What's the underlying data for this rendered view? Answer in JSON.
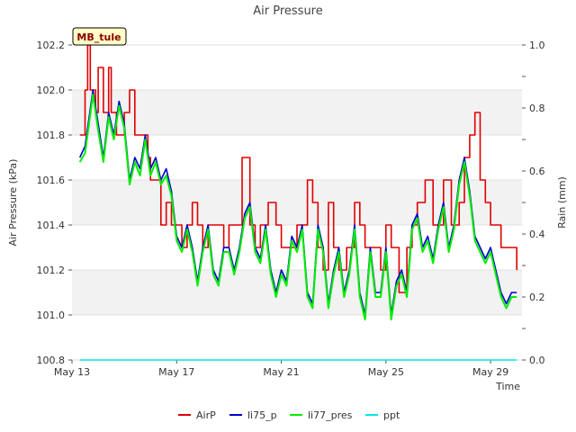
{
  "chart_data": {
    "type": "line",
    "title": "Air Pressure",
    "badge": "MB_tule",
    "xlabel": "Time",
    "ylabel": "Air Pressure (kPa)",
    "y2label": "Rain (mm)",
    "xlim": [
      0,
      17.2
    ],
    "ylim": [
      100.8,
      102.2
    ],
    "y2lim": [
      0.0,
      1.0
    ],
    "x_ticks": [
      0,
      4,
      8,
      12,
      16
    ],
    "x_tick_labels": [
      "May 13",
      "May 17",
      "May 21",
      "May 25",
      "May 29"
    ],
    "y_ticks": [
      "100.8",
      "101.0",
      "101.2",
      "101.4",
      "101.6",
      "101.8",
      "102.0",
      "102.2"
    ],
    "y2_ticks": [
      "0.0",
      "0.2",
      "0.4",
      "0.6",
      "0.8",
      "1.0"
    ],
    "grid": "horizontal bands",
    "legend_position": "bottom",
    "series": [
      {
        "name": "AirP",
        "color": "#e00000",
        "x": [
          0.3,
          0.5,
          0.6,
          0.7,
          0.9,
          1.0,
          1.2,
          1.4,
          1.5,
          1.7,
          1.9,
          2.0,
          2.2,
          2.4,
          2.6,
          2.9,
          3.0,
          3.2,
          3.4,
          3.6,
          3.8,
          4.0,
          4.2,
          4.4,
          4.6,
          4.8,
          5.0,
          5.2,
          5.5,
          5.8,
          6.0,
          6.2,
          6.5,
          6.8,
          7.0,
          7.2,
          7.5,
          7.8,
          8.0,
          8.2,
          8.4,
          8.6,
          8.8,
          9.0,
          9.2,
          9.4,
          9.6,
          9.8,
          10.0,
          10.2,
          10.5,
          10.8,
          11.0,
          11.2,
          11.5,
          11.8,
          12.0,
          12.2,
          12.5,
          12.8,
          13.0,
          13.2,
          13.5,
          13.8,
          14.0,
          14.2,
          14.5,
          14.8,
          15.0,
          15.2,
          15.4,
          15.6,
          15.8,
          16.0,
          16.2,
          16.4,
          16.6,
          16.8,
          17.0
        ],
        "values": [
          101.8,
          102.0,
          102.2,
          102.0,
          101.9,
          102.1,
          101.9,
          102.1,
          101.9,
          101.8,
          101.8,
          101.9,
          102.0,
          101.8,
          101.8,
          101.7,
          101.6,
          101.6,
          101.4,
          101.5,
          101.4,
          101.4,
          101.3,
          101.4,
          101.5,
          101.4,
          101.3,
          101.4,
          101.4,
          101.3,
          101.4,
          101.4,
          101.7,
          101.4,
          101.3,
          101.4,
          101.5,
          101.4,
          101.3,
          101.3,
          101.3,
          101.4,
          101.4,
          101.6,
          101.5,
          101.3,
          101.2,
          101.5,
          101.3,
          101.2,
          101.3,
          101.5,
          101.4,
          101.3,
          101.3,
          101.2,
          101.4,
          101.3,
          101.1,
          101.3,
          101.4,
          101.5,
          101.6,
          101.4,
          101.4,
          101.6,
          101.4,
          101.5,
          101.7,
          101.8,
          101.9,
          101.6,
          101.5,
          101.4,
          101.4,
          101.3,
          101.3,
          101.3,
          101.2
        ]
      },
      {
        "name": "li75_p",
        "color": "#0000cc",
        "x": [
          0.3,
          0.5,
          0.8,
          1.0,
          1.2,
          1.4,
          1.6,
          1.8,
          2.0,
          2.2,
          2.4,
          2.6,
          2.8,
          3.0,
          3.2,
          3.4,
          3.6,
          3.8,
          4.0,
          4.2,
          4.4,
          4.6,
          4.8,
          5.0,
          5.2,
          5.4,
          5.6,
          5.8,
          6.0,
          6.2,
          6.4,
          6.6,
          6.8,
          7.0,
          7.2,
          7.4,
          7.6,
          7.8,
          8.0,
          8.2,
          8.4,
          8.6,
          8.8,
          9.0,
          9.2,
          9.4,
          9.6,
          9.8,
          10.0,
          10.2,
          10.4,
          10.6,
          10.8,
          11.0,
          11.2,
          11.4,
          11.6,
          11.8,
          12.0,
          12.2,
          12.4,
          12.6,
          12.8,
          13.0,
          13.2,
          13.4,
          13.6,
          13.8,
          14.0,
          14.2,
          14.4,
          14.6,
          14.8,
          15.0,
          15.2,
          15.4,
          15.6,
          15.8,
          16.0,
          16.2,
          16.4,
          16.6,
          16.8,
          17.0
        ],
        "values": [
          101.7,
          101.75,
          102.0,
          101.85,
          101.7,
          101.9,
          101.8,
          101.95,
          101.85,
          101.6,
          101.7,
          101.65,
          101.8,
          101.65,
          101.7,
          101.6,
          101.65,
          101.55,
          101.35,
          101.3,
          101.4,
          101.3,
          101.15,
          101.3,
          101.4,
          101.2,
          101.15,
          101.3,
          101.3,
          101.2,
          101.3,
          101.45,
          101.5,
          101.3,
          101.25,
          101.4,
          101.2,
          101.1,
          101.2,
          101.15,
          101.35,
          101.3,
          101.4,
          101.1,
          101.05,
          101.4,
          101.3,
          101.05,
          101.2,
          101.3,
          101.1,
          101.2,
          101.4,
          101.1,
          101.0,
          101.3,
          101.1,
          101.1,
          101.3,
          101.0,
          101.15,
          101.2,
          101.1,
          101.4,
          101.45,
          101.3,
          101.35,
          101.25,
          101.4,
          101.5,
          101.3,
          101.4,
          101.6,
          101.7,
          101.55,
          101.35,
          101.3,
          101.25,
          101.3,
          101.2,
          101.1,
          101.05,
          101.1,
          101.1
        ]
      },
      {
        "name": "li77_pres",
        "color": "#00ee00",
        "x": [
          0.3,
          0.5,
          0.8,
          1.0,
          1.2,
          1.4,
          1.6,
          1.8,
          2.0,
          2.2,
          2.4,
          2.6,
          2.8,
          3.0,
          3.2,
          3.4,
          3.6,
          3.8,
          4.0,
          4.2,
          4.4,
          4.6,
          4.8,
          5.0,
          5.2,
          5.4,
          5.6,
          5.8,
          6.0,
          6.2,
          6.4,
          6.6,
          6.8,
          7.0,
          7.2,
          7.4,
          7.6,
          7.8,
          8.0,
          8.2,
          8.4,
          8.6,
          8.8,
          9.0,
          9.2,
          9.4,
          9.6,
          9.8,
          10.0,
          10.2,
          10.4,
          10.6,
          10.8,
          11.0,
          11.2,
          11.4,
          11.6,
          11.8,
          12.0,
          12.2,
          12.4,
          12.6,
          12.8,
          13.0,
          13.2,
          13.4,
          13.6,
          13.8,
          14.0,
          14.2,
          14.4,
          14.6,
          14.8,
          15.0,
          15.2,
          15.4,
          15.6,
          15.8,
          16.0,
          16.2,
          16.4,
          16.6,
          16.8,
          17.0
        ],
        "values": [
          101.68,
          101.72,
          101.98,
          101.82,
          101.68,
          101.88,
          101.78,
          101.93,
          101.83,
          101.58,
          101.68,
          101.62,
          101.78,
          101.62,
          101.68,
          101.58,
          101.62,
          101.53,
          101.33,
          101.28,
          101.38,
          101.28,
          101.13,
          101.28,
          101.38,
          101.18,
          101.13,
          101.28,
          101.28,
          101.18,
          101.28,
          101.43,
          101.48,
          101.28,
          101.23,
          101.38,
          101.18,
          101.08,
          101.18,
          101.13,
          101.33,
          101.28,
          101.38,
          101.08,
          101.03,
          101.38,
          101.28,
          101.03,
          101.18,
          101.28,
          101.08,
          101.18,
          101.38,
          101.08,
          100.98,
          101.28,
          101.08,
          101.08,
          101.28,
          100.98,
          101.13,
          101.18,
          101.08,
          101.38,
          101.43,
          101.28,
          101.33,
          101.23,
          101.38,
          101.48,
          101.28,
          101.38,
          101.58,
          101.68,
          101.53,
          101.33,
          101.28,
          101.23,
          101.28,
          101.18,
          101.08,
          101.03,
          101.08,
          101.08
        ]
      },
      {
        "name": "ppt",
        "color": "#00e5e5",
        "axis": "right",
        "x": [
          0.3,
          17.0
        ],
        "values": [
          0.0,
          0.0
        ]
      }
    ]
  }
}
